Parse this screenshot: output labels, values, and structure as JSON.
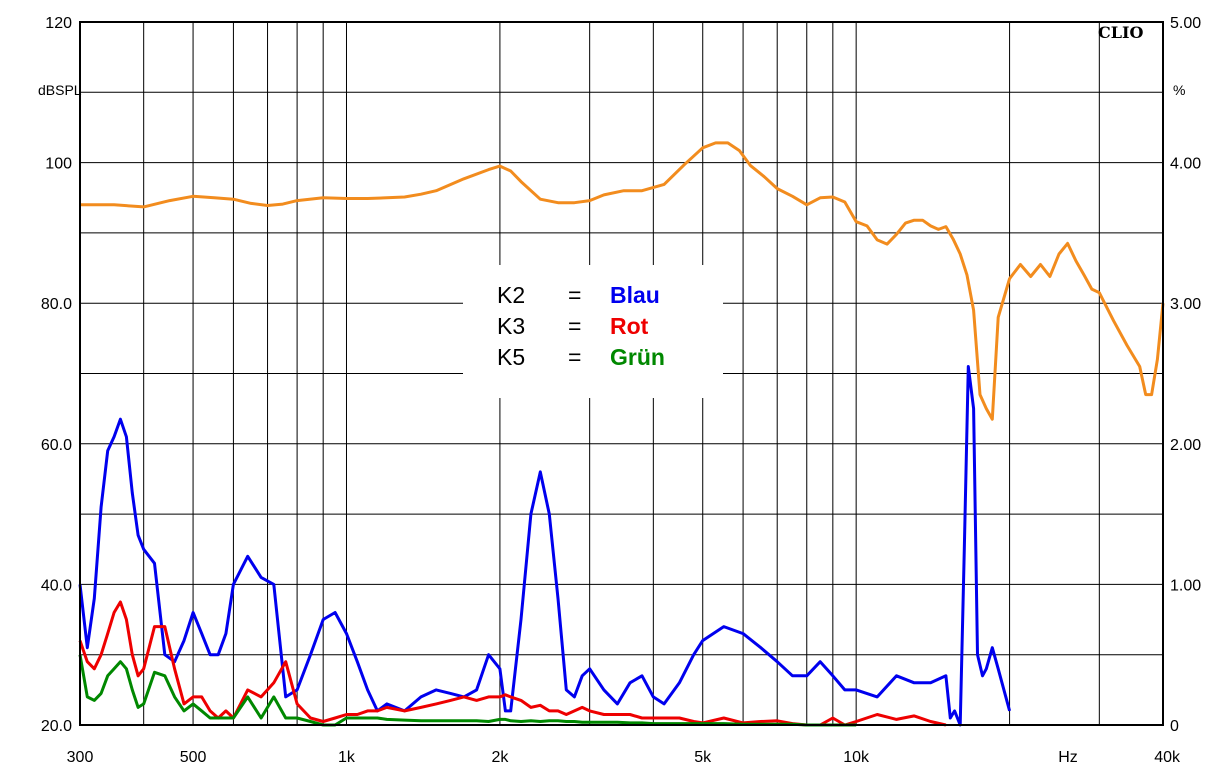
{
  "chart_data": {
    "type": "line",
    "brand": "CLIO",
    "left_axis": {
      "unit_label": "dBSPL",
      "ylim": [
        20,
        120
      ],
      "tick_labels": [
        "120",
        "",
        "100",
        "80.0",
        "60.0",
        "40.0",
        "20.0"
      ]
    },
    "right_axis": {
      "unit_label": "%",
      "ylim": [
        0,
        5
      ],
      "tick_labels": [
        "5.00",
        "4.00",
        "3.00",
        "2.00",
        "1.00",
        "0"
      ]
    },
    "x_axis": {
      "scale": "log",
      "xlim": [
        300,
        40000
      ],
      "unit_label": "Hz",
      "tick_labels": [
        {
          "value": 300,
          "label": "300"
        },
        {
          "value": 500,
          "label": "500"
        },
        {
          "value": 1000,
          "label": "1k"
        },
        {
          "value": 2000,
          "label": "2k"
        },
        {
          "value": 5000,
          "label": "5k"
        },
        {
          "value": 10000,
          "label": "10k"
        },
        {
          "value": 40000,
          "label": "40k"
        }
      ]
    },
    "grid": true,
    "legend": {
      "placement": "center",
      "entries": [
        {
          "name": "K2",
          "eq": "=",
          "value": "Blau",
          "color": "#0000ee"
        },
        {
          "name": "K3",
          "eq": "=",
          "value": "Rot",
          "color": "#ee0000"
        },
        {
          "name": "K5",
          "eq": "=",
          "value": "Grün",
          "color": "#008800"
        }
      ]
    },
    "series": [
      {
        "color": "#f28c1e",
        "x": [
          300,
          350,
          400,
          450,
          500,
          550,
          600,
          650,
          700,
          750,
          800,
          900,
          1000,
          1100,
          1200,
          1300,
          1400,
          1500,
          1700,
          1900,
          2000,
          2100,
          2200,
          2400,
          2600,
          2800,
          3000,
          3200,
          3500,
          3800,
          4200,
          4600,
          5000,
          5300,
          5600,
          5900,
          6200,
          6600,
          7000,
          7500,
          8000,
          8500,
          9000,
          9500,
          10000,
          10500,
          11000,
          11500,
          12000,
          12500,
          13000,
          13500,
          14000,
          14500,
          15000,
          15500,
          16000,
          16500,
          17000,
          17500,
          18000,
          18500,
          19000,
          20000,
          21000,
          22000,
          23000,
          24000,
          25000,
          26000,
          27000,
          28000,
          29000,
          30000,
          32000,
          34000,
          36000,
          37000,
          38000,
          39000,
          40000
        ],
        "y": [
          94,
          94,
          93.7,
          94.6,
          95.2,
          95,
          94.8,
          94.2,
          93.9,
          94.1,
          94.6,
          95,
          94.9,
          94.9,
          95,
          95.1,
          95.5,
          96,
          97.7,
          99,
          99.5,
          98.8,
          97.3,
          94.8,
          94.3,
          94.3,
          94.6,
          95.4,
          96,
          96,
          96.9,
          99.7,
          102.1,
          102.8,
          102.8,
          101.7,
          99.6,
          98,
          96.3,
          95.2,
          94,
          95,
          95.1,
          94.4,
          91.6,
          91,
          89,
          88.4,
          89.8,
          91.4,
          91.8,
          91.8,
          91,
          90.5,
          90.9,
          89.1,
          87,
          84,
          79,
          67,
          65,
          63.5,
          78,
          83.5,
          85.5,
          83.8,
          85.5,
          83.8,
          87,
          88.5,
          86,
          84,
          82,
          81.5,
          77.5,
          74,
          71,
          67,
          67,
          72,
          80
        ]
      },
      {
        "color": "#0000ee",
        "x": [
          300,
          310,
          320,
          330,
          340,
          350,
          360,
          370,
          380,
          390,
          400,
          420,
          440,
          460,
          480,
          500,
          520,
          540,
          560,
          580,
          600,
          640,
          680,
          720,
          760,
          800,
          850,
          900,
          950,
          1000,
          1050,
          1100,
          1150,
          1200,
          1300,
          1400,
          1500,
          1600,
          1700,
          1800,
          1900,
          2000,
          2050,
          2100,
          2200,
          2300,
          2400,
          2500,
          2600,
          2700,
          2800,
          2900,
          3000,
          3200,
          3400,
          3600,
          3800,
          4000,
          4200,
          4500,
          4800,
          5000,
          5500,
          6000,
          6500,
          7000,
          7500,
          8000,
          8500,
          9000,
          9500,
          10000,
          11000,
          12000,
          13000,
          14000,
          15000,
          15300,
          15600,
          16000,
          16300,
          16600,
          17000,
          17300,
          17700,
          18000,
          18500,
          19000,
          20000
        ],
        "y": [
          40,
          31,
          38,
          51,
          59,
          61,
          63.5,
          61,
          53,
          47,
          45,
          43,
          30,
          29,
          32,
          36,
          33,
          30,
          30,
          33,
          40,
          44,
          41,
          40,
          24,
          25,
          30,
          35,
          36,
          33,
          29,
          25,
          22,
          23,
          22,
          24,
          25,
          24.5,
          24,
          25,
          30,
          28,
          22,
          22,
          35,
          50,
          56,
          50,
          38,
          25,
          24,
          27,
          28,
          25,
          23,
          26,
          27,
          24,
          23,
          26,
          30,
          32,
          34,
          33,
          31,
          29,
          27,
          27,
          29,
          27,
          25,
          25,
          24,
          27,
          26,
          26,
          27,
          21,
          22,
          20,
          45,
          71,
          65,
          30,
          27,
          28,
          31,
          28,
          22
        ]
      },
      {
        "color": "#ee0000",
        "x": [
          300,
          310,
          320,
          330,
          340,
          350,
          360,
          370,
          380,
          390,
          400,
          420,
          440,
          460,
          480,
          500,
          520,
          540,
          560,
          580,
          600,
          640,
          680,
          720,
          760,
          800,
          850,
          900,
          950,
          1000,
          1050,
          1100,
          1150,
          1200,
          1300,
          1400,
          1500,
          1600,
          1700,
          1800,
          1900,
          2000,
          2050,
          2100,
          2200,
          2300,
          2400,
          2500,
          2600,
          2700,
          2800,
          2900,
          3000,
          3200,
          3400,
          3600,
          3800,
          4000,
          4200,
          4500,
          4800,
          5000,
          5500,
          6000,
          6500,
          7000,
          7500,
          8000,
          8500,
          9000,
          9500,
          10000,
          11000,
          12000,
          13000,
          14000,
          15000
        ],
        "y": [
          32,
          29,
          28,
          30,
          33,
          36,
          37.5,
          35,
          30,
          27,
          28,
          34,
          34,
          28,
          23,
          24,
          24,
          22,
          21,
          22,
          21,
          25,
          24,
          26,
          29,
          23,
          21,
          20.5,
          21,
          21.5,
          21.5,
          22,
          22,
          22.5,
          22,
          22.5,
          23,
          23.5,
          24,
          23.5,
          24,
          24,
          24.3,
          24,
          23.5,
          22.5,
          22.8,
          22,
          22,
          21.5,
          22,
          22.5,
          22,
          21.5,
          21.5,
          21.5,
          21,
          21,
          21,
          21,
          20.5,
          20.3,
          21,
          20.3,
          20.5,
          20.6,
          20.2,
          20,
          20,
          21,
          20,
          20.5,
          21.5,
          20.8,
          21.3,
          20.5,
          20
        ]
      },
      {
        "color": "#008800",
        "x": [
          300,
          310,
          320,
          330,
          340,
          350,
          360,
          370,
          380,
          390,
          400,
          420,
          440,
          460,
          480,
          500,
          520,
          540,
          560,
          580,
          600,
          640,
          680,
          720,
          760,
          800,
          850,
          900,
          950,
          1000,
          1050,
          1100,
          1150,
          1200,
          1300,
          1400,
          1500,
          1600,
          1700,
          1800,
          1900,
          2000,
          2050,
          2100,
          2200,
          2300,
          2400,
          2500,
          2600,
          2700,
          2800,
          2900,
          3000,
          3200,
          3400,
          3600,
          3800,
          4000,
          4200,
          4500,
          4800,
          5000,
          5500,
          6000,
          6500,
          7000,
          7500,
          8000,
          8500,
          9000,
          9500,
          10000
        ],
        "y": [
          30,
          24,
          23.5,
          24.5,
          27,
          28,
          29,
          28,
          25,
          22.5,
          23,
          27.5,
          27,
          24,
          22,
          23,
          22,
          21,
          21,
          21,
          21,
          24,
          21,
          24,
          21,
          21,
          20.5,
          20,
          20,
          21,
          21,
          21,
          21,
          20.8,
          20.7,
          20.6,
          20.6,
          20.6,
          20.6,
          20.6,
          20.5,
          20.8,
          20.8,
          20.6,
          20.5,
          20.6,
          20.5,
          20.6,
          20.6,
          20.5,
          20.5,
          20.4,
          20.4,
          20.4,
          20.4,
          20.3,
          20.3,
          20.2,
          20.2,
          20.2,
          20.2,
          20.2,
          20.2,
          20.1,
          20.1,
          20.1,
          20.1,
          20,
          20,
          20,
          20,
          20
        ]
      }
    ]
  }
}
